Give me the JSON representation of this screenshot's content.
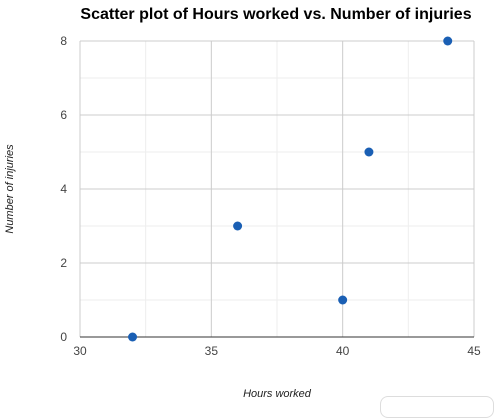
{
  "chart_data": {
    "type": "scatter",
    "title": "Scatter plot of Hours worked vs. Number of injuries",
    "xlabel": "Hours worked",
    "ylabel": "Number of injuries",
    "xlim": [
      30,
      45
    ],
    "ylim": [
      0,
      8
    ],
    "x_ticks": [
      30,
      35,
      40,
      45
    ],
    "y_ticks": [
      0,
      2,
      4,
      6,
      8
    ],
    "grid": true,
    "points": [
      {
        "x": 32,
        "y": 0
      },
      {
        "x": 36,
        "y": 3
      },
      {
        "x": 40,
        "y": 1
      },
      {
        "x": 41,
        "y": 5
      },
      {
        "x": 44,
        "y": 8
      }
    ],
    "colors": {
      "point": "#1a5fb4",
      "major_grid": "#cccccc",
      "minor_grid": "#eeeeee",
      "baseline": "#333333"
    }
  }
}
